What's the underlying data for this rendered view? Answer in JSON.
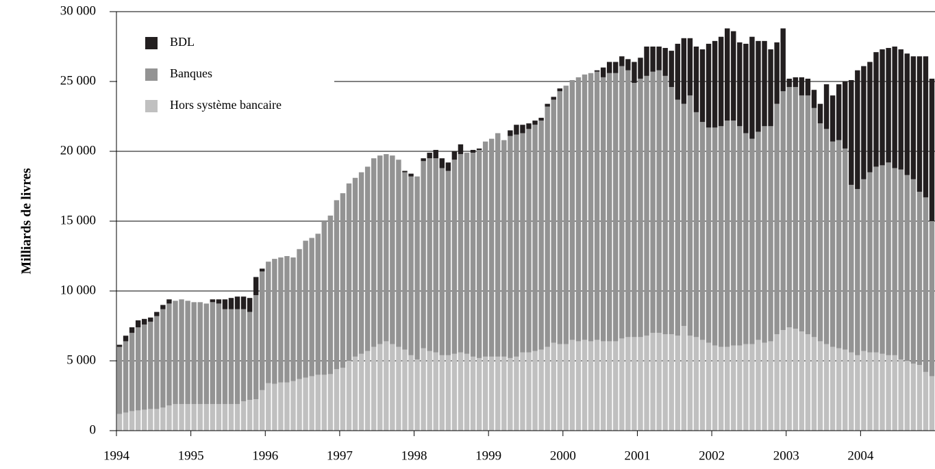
{
  "chart_data": {
    "type": "stacked_bar",
    "y_label": "Milliards de livres",
    "categories": [
      "1994",
      null,
      null,
      null,
      null,
      null,
      null,
      null,
      null,
      null,
      null,
      null,
      "1995",
      null,
      null,
      null,
      null,
      null,
      null,
      null,
      null,
      null,
      null,
      null,
      "1996",
      null,
      null,
      null,
      null,
      null,
      null,
      null,
      null,
      null,
      null,
      null,
      "1997",
      null,
      null,
      null,
      null,
      null,
      null,
      null,
      null,
      null,
      null,
      null,
      "1998",
      null,
      null,
      null,
      null,
      null,
      null,
      null,
      null,
      null,
      null,
      null,
      "1999",
      null,
      null,
      null,
      null,
      null,
      null,
      null,
      null,
      null,
      null,
      null,
      "2000",
      null,
      null,
      null,
      null,
      null,
      null,
      null,
      null,
      null,
      null,
      null,
      "2001",
      null,
      null,
      null,
      null,
      null,
      null,
      null,
      null,
      null,
      null,
      null,
      "2002",
      null,
      null,
      null,
      null,
      null,
      null,
      null,
      null,
      null,
      null,
      null,
      "2003",
      null,
      null,
      null,
      null,
      null,
      null,
      null,
      null,
      null,
      null,
      null,
      "2004",
      null,
      null,
      null,
      null,
      null,
      null,
      null,
      null,
      null,
      null,
      null
    ],
    "series": [
      {
        "name": "Hors système bancaire",
        "color": "#c0c0c0",
        "values": [
          1200,
          1300,
          1400,
          1450,
          1500,
          1550,
          1550,
          1650,
          1800,
          1900,
          1900,
          1900,
          1900,
          1900,
          1900,
          1900,
          1900,
          1900,
          1900,
          1900,
          2100,
          2200,
          2250,
          2900,
          3400,
          3350,
          3450,
          3450,
          3550,
          3700,
          3800,
          3900,
          4000,
          4000,
          4050,
          4400,
          4500,
          5000,
          5300,
          5500,
          5700,
          6000,
          6200,
          6400,
          6200,
          6000,
          5800,
          5400,
          5100,
          5900,
          5700,
          5600,
          5400,
          5400,
          5500,
          5600,
          5500,
          5300,
          5200,
          5300,
          5300,
          5300,
          5300,
          5200,
          5300,
          5600,
          5600,
          5700,
          5800,
          6000,
          6300,
          6200,
          6200,
          6500,
          6400,
          6500,
          6400,
          6500,
          6400,
          6400,
          6400,
          6600,
          6700,
          6700,
          6700,
          6800,
          7000,
          7000,
          6900,
          6900,
          6800,
          7500,
          6800,
          6700,
          6500,
          6300,
          6100,
          6000,
          6000,
          6100,
          6100,
          6200,
          6200,
          6500,
          6300,
          6400,
          6900,
          7200,
          7400,
          7300,
          7100,
          6900,
          6700,
          6400,
          6200,
          6000,
          5900,
          5800,
          5600,
          5400,
          5700,
          5600,
          5600,
          5500,
          5400,
          5400,
          5100,
          5000,
          4800,
          4700,
          4200,
          3900
        ]
      },
      {
        "name": "Banques",
        "color": "#939393",
        "values": [
          4800,
          5100,
          5600,
          5950,
          6100,
          6250,
          6650,
          7050,
          7300,
          7400,
          7500,
          7400,
          7300,
          7300,
          7200,
          7300,
          7200,
          6800,
          6800,
          6800,
          6600,
          6300,
          7450,
          8500,
          8700,
          8950,
          8950,
          9050,
          8850,
          9300,
          9800,
          9900,
          10100,
          11000,
          11350,
          12100,
          12500,
          12700,
          12800,
          13000,
          13200,
          13500,
          13500,
          13400,
          13500,
          13400,
          12700,
          12800,
          13100,
          13400,
          13800,
          13900,
          13400,
          13200,
          13900,
          14200,
          14400,
          14600,
          14900,
          15400,
          15600,
          16000,
          15500,
          15900,
          15900,
          15700,
          16000,
          16200,
          16400,
          17200,
          17400,
          18100,
          18500,
          18600,
          18900,
          19000,
          19200,
          19200,
          18900,
          19200,
          19200,
          19500,
          19100,
          18200,
          18500,
          18600,
          18700,
          18800,
          18500,
          17700,
          16900,
          15900,
          17200,
          16100,
          15600,
          15400,
          15600,
          15800,
          16200,
          16100,
          15700,
          15100,
          14700,
          14900,
          15500,
          15400,
          16500,
          17100,
          17200,
          17300,
          16900,
          17100,
          16400,
          15600,
          15400,
          14700,
          14900,
          14400,
          12000,
          11900,
          12300,
          12900,
          13300,
          13500,
          13800,
          13400,
          13600,
          13300,
          13200,
          12400,
          12500,
          11100
        ]
      },
      {
        "name": "BDL",
        "color": "#231f20",
        "values": [
          150,
          400,
          400,
          500,
          400,
          300,
          300,
          300,
          300,
          0,
          0,
          0,
          0,
          0,
          0,
          200,
          300,
          700,
          800,
          900,
          900,
          1000,
          1300,
          200,
          0,
          0,
          0,
          0,
          0,
          0,
          0,
          0,
          0,
          0,
          0,
          0,
          0,
          0,
          0,
          0,
          0,
          0,
          0,
          0,
          0,
          0,
          100,
          200,
          0,
          200,
          400,
          600,
          700,
          600,
          600,
          700,
          0,
          200,
          100,
          0,
          0,
          0,
          0,
          400,
          700,
          600,
          400,
          300,
          200,
          200,
          200,
          200,
          0,
          0,
          0,
          0,
          0,
          100,
          700,
          800,
          800,
          700,
          800,
          1500,
          1500,
          2100,
          1800,
          1700,
          2000,
          2600,
          4000,
          4700,
          4100,
          4700,
          5200,
          6000,
          6200,
          6400,
          6600,
          6400,
          6000,
          6400,
          7300,
          6500,
          6100,
          5500,
          4400,
          4500,
          600,
          700,
          1300,
          1200,
          1300,
          1400,
          3200,
          3300,
          4000,
          4800,
          7500,
          8500,
          8100,
          7900,
          8200,
          8300,
          8200,
          8700,
          8600,
          8700,
          8800,
          9700,
          10100,
          10200
        ]
      }
    ],
    "ylim": [
      0,
      30000
    ],
    "yticks": [
      0,
      {
        "value": 5000,
        "label": "5 000"
      },
      {
        "value": 10000,
        "label": "10 000"
      },
      {
        "value": 15000,
        "label": "15 000"
      },
      {
        "value": 20000,
        "label": "20 000"
      },
      {
        "value": 25000,
        "label": "25 000"
      },
      {
        "value": 30000,
        "label": "30 000"
      }
    ],
    "grid": true
  }
}
